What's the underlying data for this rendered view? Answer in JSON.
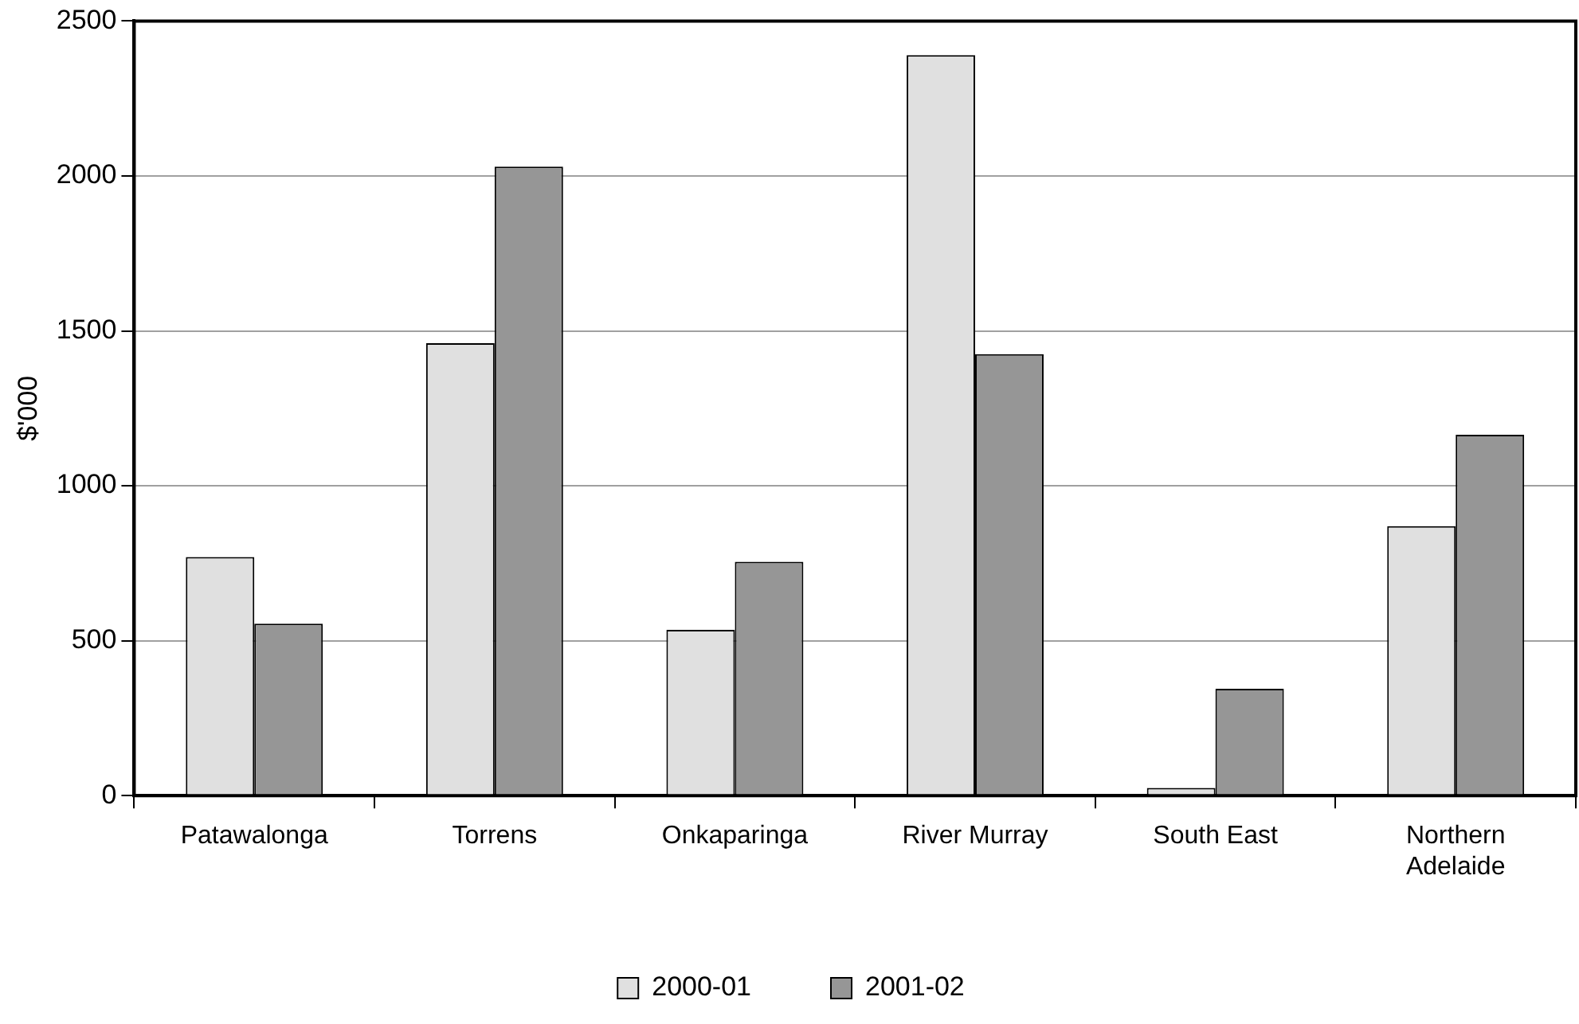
{
  "chart_data": {
    "type": "bar",
    "ylabel": "$'000",
    "categories": [
      "Patawalonga",
      "Torrens",
      "Onkaparinga",
      "River Murray",
      "South East",
      "Northern Adelaide"
    ],
    "series": [
      {
        "name": "2000-01",
        "color": "#e0e0e0",
        "values": [
          770,
          1460,
          535,
          2390,
          25,
          870
        ]
      },
      {
        "name": "2001-02",
        "color": "#969696",
        "values": [
          555,
          2030,
          755,
          1425,
          345,
          1165
        ]
      }
    ],
    "ylim": [
      0,
      2500
    ],
    "yticks": [
      0,
      500,
      1000,
      1500,
      2000,
      2500
    ],
    "grid": "y",
    "legend": "bottom"
  }
}
